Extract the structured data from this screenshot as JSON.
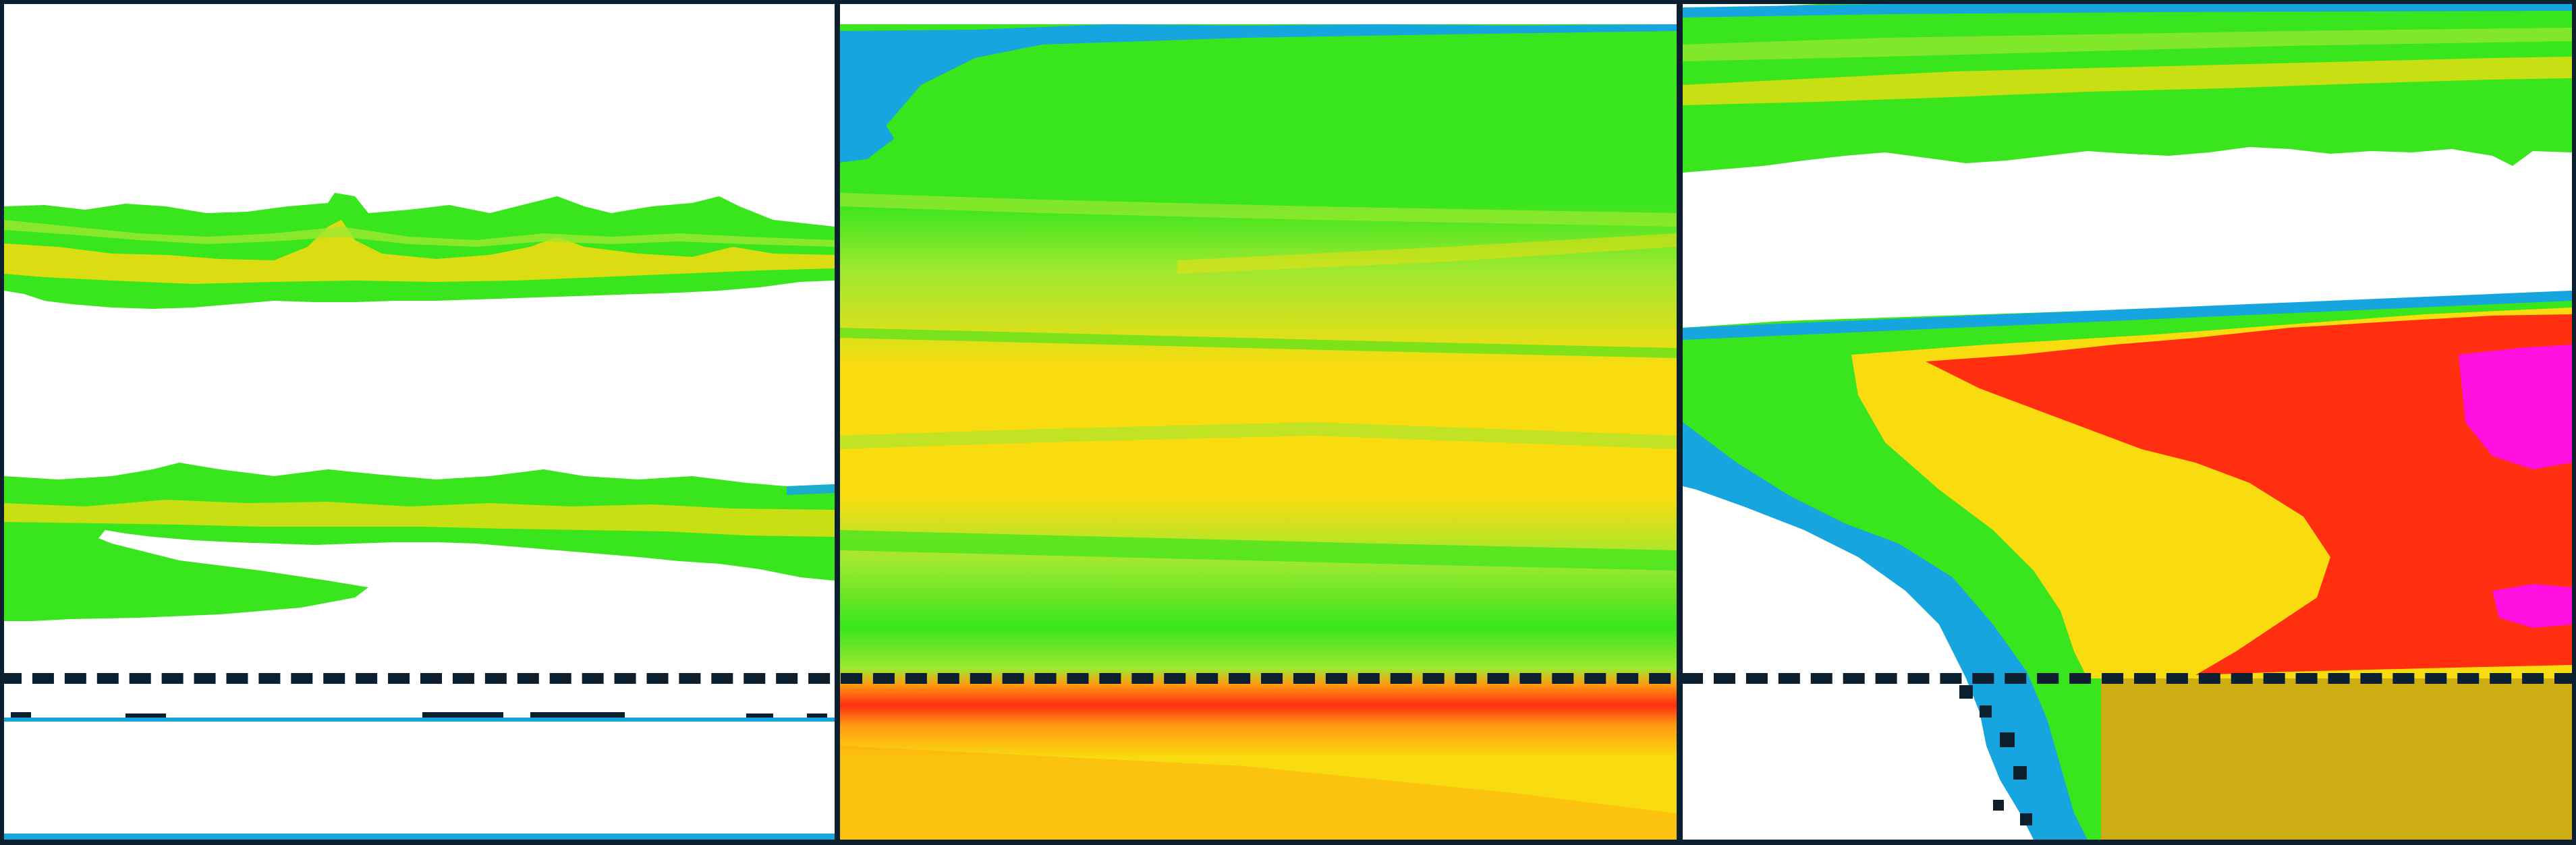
{
  "figure": {
    "panel_count": 3,
    "panels": [
      {
        "id": "left",
        "description": ""
      },
      {
        "id": "middle",
        "description": ""
      },
      {
        "id": "right",
        "description": ""
      }
    ],
    "colors": {
      "background": "#ffffff",
      "frame": "#0b1f2e",
      "blue": "#17a5e0",
      "green": "#39e51c",
      "lime": "#9ee830",
      "yellow": "#f8dc10",
      "orange": "#ff9a10",
      "red": "#ff2f10",
      "magenta": "#ff10e0",
      "dark": "#0b1f2e"
    },
    "reference_line_style": "dashed",
    "colormap": [
      "blue",
      "green",
      "lime",
      "yellow",
      "orange",
      "red",
      "magenta"
    ]
  }
}
